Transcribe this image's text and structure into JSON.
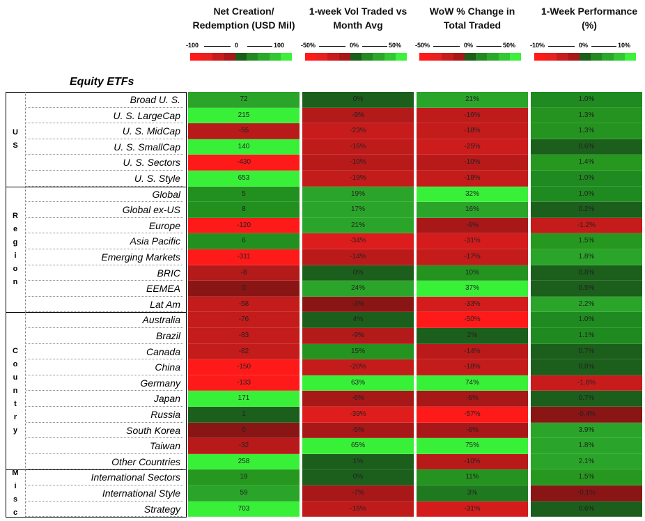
{
  "headers": [
    {
      "line1": "Net Creation/",
      "line2": "Redemption (USD Mil)"
    },
    {
      "line1": "1-week Vol Traded vs",
      "line2": "Month Avg"
    },
    {
      "line1": "WoW % Change in",
      "line2": "Total Traded"
    },
    {
      "line1": "1-Week Performance",
      "line2": "(%)"
    }
  ],
  "legends": [
    {
      "min": "-100",
      "mid": "0",
      "max": "100"
    },
    {
      "min": "-50%",
      "mid": "0%",
      "max": "50%"
    },
    {
      "min": "-50%",
      "mid": "0%",
      "max": "50%"
    },
    {
      "min": "-10%",
      "mid": "0%",
      "max": "10%"
    }
  ],
  "legend_colors": [
    "#ff1a1a",
    "#e8201e",
    "#c81c1c",
    "#a81818",
    "#1a5e1a",
    "#238a23",
    "#2aa82a",
    "#32c832",
    "#3cf03c"
  ],
  "section_title": "Equity ETFs",
  "groups": [
    {
      "letters": [
        "U",
        "S"
      ],
      "rows": [
        {
          "label": "Broad U. S.",
          "values": [
            "72",
            "0%",
            "21%",
            "1.0%"
          ],
          "colors": [
            "#2aa52a",
            "#1c5e1c",
            "#2aa52a",
            "#1f8a1f"
          ]
        },
        {
          "label": "U. S. LargeCap",
          "values": [
            "215",
            "-9%",
            "-16%",
            "1.3%"
          ],
          "colors": [
            "#39f039",
            "#b31a1a",
            "#c01b1b",
            "#24931f"
          ]
        },
        {
          "label": "U. S. MidCap",
          "values": [
            "-55",
            "-23%",
            "-18%",
            "1.3%"
          ],
          "colors": [
            "#b81a1a",
            "#c81c1c",
            "#c41b1b",
            "#24931f"
          ]
        },
        {
          "label": "U. S. SmallCap",
          "values": [
            "140",
            "-16%",
            "-25%",
            "0.6%"
          ],
          "colors": [
            "#39f039",
            "#c01b1b",
            "#cc1c1c",
            "#1c5e1c"
          ]
        },
        {
          "label": "U. S. Sectors",
          "values": [
            "-430",
            "-10%",
            "-10%",
            "1.4%"
          ],
          "colors": [
            "#ff1a1a",
            "#b81a1a",
            "#b81a1a",
            "#26981f"
          ]
        },
        {
          "label": "U. S. Style",
          "values": [
            "653",
            "-19%",
            "-18%",
            "1.0%"
          ],
          "colors": [
            "#39f039",
            "#c41b1b",
            "#c41b1b",
            "#1f8a1f"
          ]
        }
      ]
    },
    {
      "letters": [
        "R",
        "e",
        "g",
        "i",
        "o",
        "n"
      ],
      "rows": [
        {
          "label": "Global",
          "values": [
            "5",
            "19%",
            "32%",
            "1.0%"
          ],
          "colors": [
            "#22901f",
            "#2aa52a",
            "#39f039",
            "#1f8a1f"
          ]
        },
        {
          "label": "Global ex-US",
          "values": [
            "8",
            "17%",
            "16%",
            "0.2%"
          ],
          "colors": [
            "#22901f",
            "#2aa52a",
            "#2aa52a",
            "#1c5e1c"
          ]
        },
        {
          "label": "Europe",
          "values": [
            "-120",
            "21%",
            "-6%",
            "-1.2%"
          ],
          "colors": [
            "#ff1a1a",
            "#2aa52a",
            "#a81818",
            "#c41b1b"
          ]
        },
        {
          "label": "Asia Pacific",
          "values": [
            "6",
            "-34%",
            "-31%",
            "1.5%"
          ],
          "colors": [
            "#22901f",
            "#dd1d1d",
            "#d41c1c",
            "#26981f"
          ]
        },
        {
          "label": "Emerging Markets",
          "values": [
            "-311",
            "-14%",
            "-17%",
            "1.8%"
          ],
          "colors": [
            "#ff1a1a",
            "#bb1a1a",
            "#c41b1b",
            "#2aa52a"
          ]
        },
        {
          "label": "BRIC",
          "values": [
            "-8",
            "0%",
            "10%",
            "0.8%"
          ],
          "colors": [
            "#b31a1a",
            "#1c5e1c",
            "#24931f",
            "#1c5e1c"
          ]
        },
        {
          "label": "EEMEA",
          "values": [
            "0",
            "24%",
            "37%",
            "0.5%"
          ],
          "colors": [
            "#8a1515",
            "#2aa52a",
            "#39f039",
            "#1c5e1c"
          ]
        },
        {
          "label": "Lat Am",
          "values": [
            "-58",
            "-3%",
            "-33%",
            "2.2%"
          ],
          "colors": [
            "#c41b1b",
            "#8a1515",
            "#d41c1c",
            "#2aa52a"
          ]
        }
      ]
    },
    {
      "letters": [
        "C",
        "o",
        "u",
        "n",
        "t",
        "r",
        "y"
      ],
      "rows": [
        {
          "label": "Australia",
          "values": [
            "-76",
            "4%",
            "-50%",
            "1.0%"
          ],
          "colors": [
            "#c41b1b",
            "#1c5e1c",
            "#ff1a1a",
            "#1f8a1f"
          ]
        },
        {
          "label": "Brazil",
          "values": [
            "-83",
            "-9%",
            "2%",
            "1.1%"
          ],
          "colors": [
            "#c41b1b",
            "#b31a1a",
            "#1c5e1c",
            "#1f8a1f"
          ]
        },
        {
          "label": "Canada",
          "values": [
            "-82",
            "15%",
            "-14%",
            "0.7%"
          ],
          "colors": [
            "#c41b1b",
            "#24931f",
            "#bb1a1a",
            "#1c5e1c"
          ]
        },
        {
          "label": "China",
          "values": [
            "-150",
            "-20%",
            "-18%",
            "0.8%"
          ],
          "colors": [
            "#ff1a1a",
            "#c41b1b",
            "#c41b1b",
            "#1c5e1c"
          ]
        },
        {
          "label": "Germany",
          "values": [
            "-133",
            "63%",
            "74%",
            "-1.6%"
          ],
          "colors": [
            "#ff1a1a",
            "#39f039",
            "#39f039",
            "#c81c1c"
          ]
        },
        {
          "label": "Japan",
          "values": [
            "171",
            "-6%",
            "-6%",
            "0.7%"
          ],
          "colors": [
            "#39f039",
            "#a81818",
            "#a81818",
            "#1c5e1c"
          ]
        },
        {
          "label": "Russia",
          "values": [
            "1",
            "-39%",
            "-57%",
            "-0.4%"
          ],
          "colors": [
            "#1c5e1c",
            "#e01d1d",
            "#ff1a1a",
            "#8a1515"
          ]
        },
        {
          "label": "South Korea",
          "values": [
            "0",
            "-5%",
            "-6%",
            "3.9%"
          ],
          "colors": [
            "#8a1515",
            "#a81818",
            "#a81818",
            "#2aa52a"
          ]
        },
        {
          "label": "Taiwan",
          "values": [
            "-32",
            "65%",
            "75%",
            "1.8%"
          ],
          "colors": [
            "#b81a1a",
            "#39f039",
            "#39f039",
            "#2aa52a"
          ]
        },
        {
          "label": "Other Countries",
          "values": [
            "258",
            "1%",
            "-10%",
            "2.1%"
          ],
          "colors": [
            "#39f039",
            "#1c5e1c",
            "#b81a1a",
            "#2aa52a"
          ]
        }
      ]
    },
    {
      "letters": [
        "M",
        "i",
        "s",
        "c"
      ],
      "rows": [
        {
          "label": "International Sectors",
          "values": [
            "19",
            "0%",
            "11%",
            "1.5%"
          ],
          "colors": [
            "#26981f",
            "#1c5e1c",
            "#24931f",
            "#26981f"
          ]
        },
        {
          "label": "International Style",
          "values": [
            "59",
            "-7%",
            "3%",
            "-0.1%"
          ],
          "colors": [
            "#2aa52a",
            "#a81818",
            "#1f7a1f",
            "#8a1515"
          ]
        },
        {
          "label": "Strategy",
          "values": [
            "703",
            "-16%",
            "-31%",
            "0.6%"
          ],
          "colors": [
            "#39f039",
            "#c01b1b",
            "#d41c1c",
            "#1c5e1c"
          ]
        }
      ]
    }
  ]
}
